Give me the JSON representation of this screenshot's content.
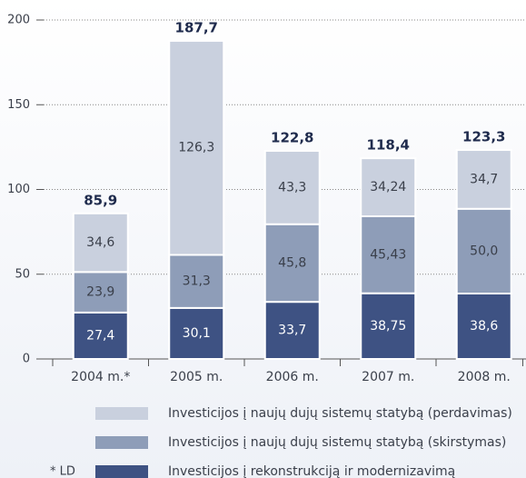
{
  "chart_data": {
    "type": "stacked_bar",
    "categories": [
      "2004 m.*",
      "2005 m.",
      "2006 m.",
      "2007 m.",
      "2008 m."
    ],
    "series": [
      {
        "name": "Investicijos į rekonstrukciją ir modernizavimą",
        "color": "#3e5283",
        "values": [
          27.4,
          30.1,
          33.7,
          38.75,
          38.6
        ],
        "value_labels": [
          "27,4",
          "30,1",
          "33,7",
          "38,75",
          "38,6"
        ]
      },
      {
        "name": "Investicijos į naujų dujų sistemų statybą (skirstymas)",
        "color": "#8e9db8",
        "values": [
          23.9,
          31.3,
          45.8,
          45.43,
          50.0
        ],
        "value_labels": [
          "23,9",
          "31,3",
          "45,8",
          "45,43",
          "50,0"
        ]
      },
      {
        "name": "Investicijos į naujų dujų sistemų statybą (perdavimas)",
        "color": "#c9d0de",
        "values": [
          34.6,
          126.3,
          43.3,
          34.24,
          34.7
        ],
        "value_labels": [
          "34,6",
          "126,3",
          "43,3",
          "34,24",
          "34,7"
        ]
      }
    ],
    "totals": [
      85.9,
      187.7,
      122.8,
      118.4,
      123.3
    ],
    "total_labels": [
      "85,9",
      "187,7",
      "122,8",
      "118,4",
      "123,3"
    ],
    "footnote": "* LD",
    "ylim": [
      0,
      200
    ],
    "yticks": [
      0,
      50,
      100,
      150,
      200
    ],
    "grid": true
  }
}
